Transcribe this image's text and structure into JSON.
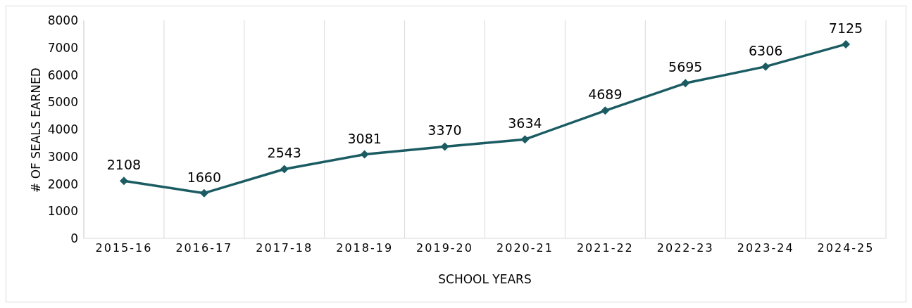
{
  "chart_data": {
    "type": "line",
    "xlabel": "SCHOOL YEARS",
    "ylabel": "# OF SEALS EARNED",
    "categories": [
      "2015-16",
      "2016-17",
      "2017-18",
      "2018-19",
      "2019-20",
      "2020-21",
      "2021-22",
      "2022-23",
      "2023-24",
      "2024-25"
    ],
    "series": [
      {
        "color": "#1b5c63",
        "values": [
          2108,
          1660,
          2543,
          3081,
          3370,
          3634,
          4689,
          5695,
          6306,
          7125
        ]
      }
    ],
    "ylim": [
      0,
      8000
    ],
    "yticks": [
      0,
      1000,
      2000,
      3000,
      4000,
      5000,
      6000,
      7000,
      8000
    ],
    "grid": "x",
    "marker": "diamond",
    "line_style": "solid",
    "data_labels": true,
    "legend": false
  }
}
